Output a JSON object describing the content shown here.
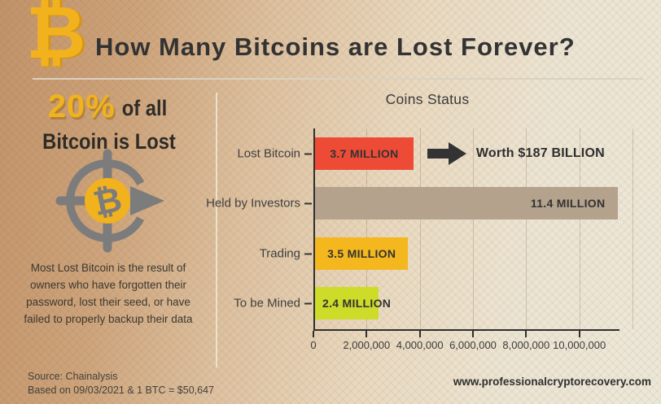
{
  "page": {
    "title": "How Many Bitcoins are Lost Forever?",
    "website": "www.professionalcryptorecovery.com"
  },
  "logo": {
    "icon": "bitcoin-icon",
    "glyph": "₿"
  },
  "left_panel": {
    "stat_percent": "20%",
    "stat_suffix": "of all",
    "stat_line2": "Bitcoin is Lost",
    "target_icon": "bitcoin-target-arrow-icon",
    "target_glyph": "₿",
    "description": "Most Lost Bitcoin is the result of owners who have forgotten their password, lost their seed, or have failed to properly backup their data",
    "source_line1": "Source: Chainalysis",
    "source_line2": "Based on 09/03/2021 & 1 BTC = $50,647"
  },
  "chart_data": {
    "type": "bar",
    "orientation": "horizontal",
    "title": "Coins Status",
    "categories": [
      "Lost Bitcoin",
      "Held by Investors",
      "Trading",
      "To be Mined"
    ],
    "values": [
      3700000,
      11400000,
      3500000,
      2400000
    ],
    "bar_labels": [
      "3.7 MILLION",
      "11.4 MILLION",
      "3.5 MILLION",
      "2.4 MILLION"
    ],
    "bar_colors": [
      "#ee4b37",
      "#b4a28d",
      "#f5b71e",
      "#ccdc28"
    ],
    "bar_label_align": [
      "center",
      "right",
      "center",
      "left"
    ],
    "x_ticks": [
      "0",
      "2,000,000",
      "4,000,000",
      "6,000,000",
      "8,000,000",
      "10,000,000"
    ],
    "x_tick_values": [
      0,
      2000000,
      4000000,
      6000000,
      8000000,
      10000000
    ],
    "grid_values": [
      2000000,
      4000000,
      6000000,
      8000000,
      10000000,
      12000000
    ],
    "xlim": [
      0,
      12000000
    ],
    "grid": true,
    "legend": false,
    "annotation": {
      "text": "Worth $187 BILLION",
      "icon": "arrow-right-icon",
      "target": "Lost Bitcoin"
    }
  },
  "colors": {
    "accent_gold": "#f0b31c",
    "bar_red": "#ee4b37",
    "bar_taupe": "#b4a28d",
    "bar_gold": "#f5b71e",
    "bar_green": "#ccdc28",
    "icon_gray": "#7c7c7c",
    "text_dark": "#333333"
  }
}
